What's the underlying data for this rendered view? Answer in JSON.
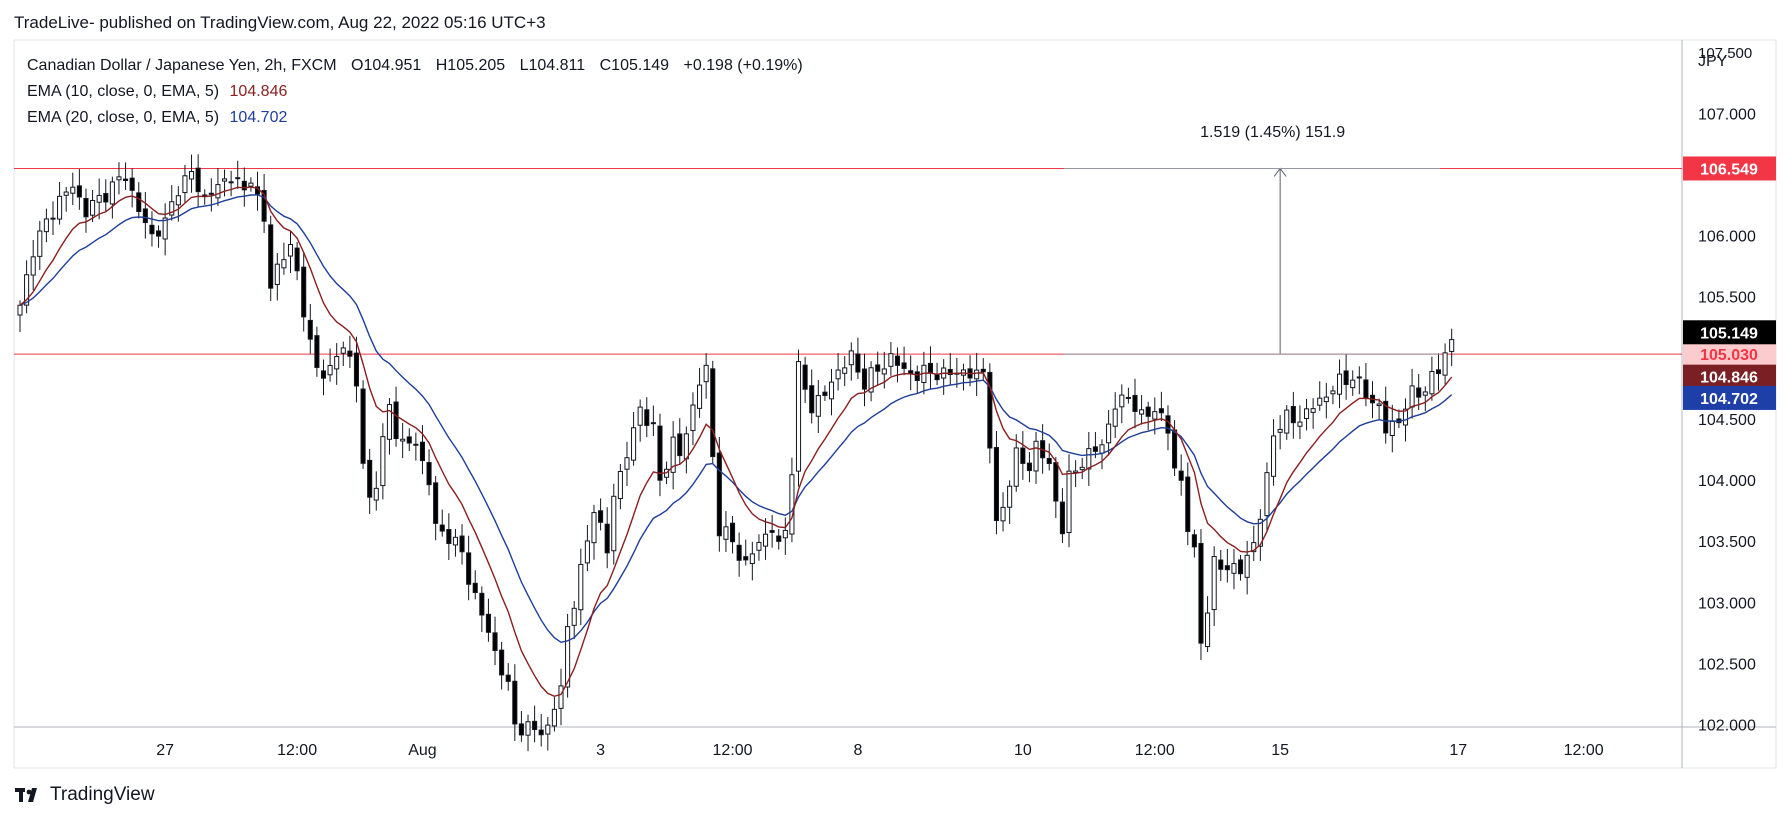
{
  "header": {
    "published_text": "TradeLive- published on TradingView.com, Aug 22, 2022 05:16 UTC+3"
  },
  "legend": {
    "symbol": "Canadian Dollar / Japanese Yen, 2h, FXCM",
    "open_label": "O",
    "open": "104.951",
    "high_label": "H",
    "high": "105.205",
    "low_label": "L",
    "low": "104.811",
    "close_label": "C",
    "close": "105.149",
    "change": "+0.198 (+0.19%)",
    "ema10_label": "EMA (10, close, 0, EMA, 5)",
    "ema10_value": "104.846",
    "ema20_label": "EMA (20, close, 0, EMA, 5)",
    "ema20_value": "104.702"
  },
  "measure": {
    "text": "1.519 (1.45%) 151.9"
  },
  "footer": {
    "brand": "TradingView"
  },
  "colors": {
    "up": "#ffffff",
    "down": "#000000",
    "wick": "#131722",
    "ema10": "#8a1f1f",
    "ema20": "#1e3e9a",
    "hline": "#f23645",
    "resistance_tag": "#f23645",
    "support_tag": "#fccbcd",
    "price_tag": "#000000",
    "ema10_tag": "#7a1f24",
    "ema20_tag": "#1e3ea8"
  },
  "chart_data": {
    "type": "candlestick",
    "currency": "JPY",
    "y_ticks": [
      "102.000",
      "102.500",
      "103.000",
      "103.500",
      "104.000",
      "104.500",
      "105.000",
      "105.500",
      "106.000",
      "106.500",
      "107.000",
      "107.500"
    ],
    "x_ticks": [
      {
        "label": "27",
        "i": 22
      },
      {
        "label": "12:00",
        "i": 42
      },
      {
        "label": "Aug",
        "i": 61
      },
      {
        "label": "3",
        "i": 88
      },
      {
        "label": "12:00",
        "i": 108
      },
      {
        "label": "8",
        "i": 127
      },
      {
        "label": "10",
        "i": 152
      },
      {
        "label": "12:00",
        "i": 172
      },
      {
        "label": "15",
        "i": 191
      },
      {
        "label": "17",
        "i": 218
      },
      {
        "label": "12:00",
        "i": 237
      }
    ],
    "ylim": [
      101.98,
      107.6
    ],
    "xlim": [
      0,
      251
    ],
    "horizontal_lines": [
      {
        "price": 106.549,
        "label": "106.549",
        "tag": "resistance_tag"
      },
      {
        "price": 105.03,
        "label": "105.030",
        "tag": "support_tag"
      }
    ],
    "price_tags": [
      {
        "price": 105.149,
        "label": "105.149",
        "tag": "price_tag"
      },
      {
        "price": 104.846,
        "label": "104.846",
        "tag": "ema10_tag"
      },
      {
        "price": 104.702,
        "label": "104.702",
        "tag": "ema20_tag"
      }
    ],
    "measure": {
      "i": 191,
      "from": 105.03,
      "to": 106.549
    },
    "anchors": [
      [
        0,
        105.4
      ],
      [
        2,
        105.9
      ],
      [
        4,
        106.1
      ],
      [
        6,
        106.3
      ],
      [
        8,
        106.4
      ],
      [
        10,
        106.2
      ],
      [
        12,
        106.3
      ],
      [
        14,
        106.4
      ],
      [
        16,
        106.5
      ],
      [
        18,
        106.2
      ],
      [
        20,
        106.0
      ],
      [
        22,
        106.1
      ],
      [
        24,
        106.4
      ],
      [
        26,
        106.5
      ],
      [
        28,
        106.3
      ],
      [
        30,
        106.4
      ],
      [
        32,
        106.5
      ],
      [
        34,
        106.35
      ],
      [
        35,
        106.5
      ],
      [
        37,
        106.1
      ],
      [
        38,
        105.6
      ],
      [
        39,
        105.75
      ],
      [
        41,
        105.9
      ],
      [
        42,
        105.7
      ],
      [
        44,
        105.1
      ],
      [
        45,
        104.9
      ],
      [
        47,
        104.9
      ],
      [
        49,
        105.1
      ],
      [
        50,
        105.0
      ],
      [
        51,
        104.8
      ],
      [
        52,
        104.1
      ],
      [
        53,
        103.85
      ],
      [
        54,
        104.0
      ],
      [
        56,
        104.6
      ],
      [
        57,
        104.4
      ],
      [
        58,
        104.3
      ],
      [
        60,
        104.3
      ],
      [
        62,
        104.0
      ],
      [
        63,
        103.6
      ],
      [
        65,
        103.55
      ],
      [
        67,
        103.4
      ],
      [
        68,
        103.2
      ],
      [
        70,
        102.9
      ],
      [
        72,
        102.6
      ],
      [
        74,
        102.3
      ],
      [
        75,
        102.0
      ],
      [
        78,
        101.95
      ],
      [
        80,
        101.97
      ],
      [
        82,
        102.3
      ],
      [
        83,
        102.8
      ],
      [
        84,
        103.0
      ],
      [
        86,
        103.5
      ],
      [
        87,
        103.8
      ],
      [
        89,
        103.4
      ],
      [
        90,
        103.9
      ],
      [
        92,
        104.2
      ],
      [
        94,
        104.6
      ],
      [
        96,
        104.4
      ],
      [
        97,
        104.0
      ],
      [
        99,
        104.3
      ],
      [
        100,
        104.2
      ],
      [
        102,
        104.6
      ],
      [
        103,
        104.8
      ],
      [
        104,
        104.9
      ],
      [
        105,
        104.2
      ],
      [
        106,
        103.6
      ],
      [
        108,
        103.5
      ],
      [
        110,
        103.3
      ],
      [
        112,
        103.5
      ],
      [
        114,
        103.6
      ],
      [
        115,
        103.45
      ],
      [
        116,
        103.6
      ],
      [
        117,
        104.1
      ],
      [
        118,
        104.9
      ],
      [
        120,
        104.6
      ],
      [
        122,
        104.7
      ],
      [
        124,
        104.9
      ],
      [
        126,
        105.0
      ],
      [
        128,
        104.8
      ],
      [
        130,
        104.9
      ],
      [
        132,
        105.0
      ],
      [
        134,
        104.9
      ],
      [
        136,
        104.85
      ],
      [
        138,
        104.9
      ],
      [
        140,
        104.85
      ],
      [
        142,
        104.9
      ],
      [
        144,
        104.85
      ],
      [
        146,
        104.9
      ],
      [
        147,
        104.3
      ],
      [
        148,
        103.6
      ],
      [
        149,
        103.8
      ],
      [
        151,
        104.2
      ],
      [
        153,
        104.1
      ],
      [
        154,
        104.3
      ],
      [
        156,
        104.1
      ],
      [
        158,
        103.6
      ],
      [
        159,
        104.0
      ],
      [
        160,
        104.1
      ],
      [
        162,
        104.2
      ],
      [
        164,
        104.3
      ],
      [
        166,
        104.6
      ],
      [
        168,
        104.7
      ],
      [
        170,
        104.5
      ],
      [
        172,
        104.6
      ],
      [
        174,
        104.4
      ],
      [
        175,
        104.1
      ],
      [
        176,
        104.0
      ],
      [
        177,
        103.6
      ],
      [
        178,
        103.4
      ],
      [
        179,
        102.7
      ],
      [
        180,
        102.95
      ],
      [
        181,
        103.3
      ],
      [
        183,
        103.3
      ],
      [
        185,
        103.25
      ],
      [
        187,
        103.5
      ],
      [
        188,
        103.7
      ],
      [
        189,
        104.0
      ],
      [
        190,
        104.4
      ],
      [
        192,
        104.5
      ],
      [
        194,
        104.5
      ],
      [
        196,
        104.6
      ],
      [
        198,
        104.7
      ],
      [
        200,
        104.8
      ],
      [
        202,
        104.85
      ],
      [
        204,
        104.7
      ],
      [
        206,
        104.6
      ],
      [
        207,
        104.4
      ],
      [
        209,
        104.5
      ],
      [
        211,
        104.7
      ],
      [
        213,
        104.75
      ],
      [
        215,
        104.9
      ],
      [
        216,
        105.05
      ],
      [
        217,
        105.149
      ]
    ]
  }
}
